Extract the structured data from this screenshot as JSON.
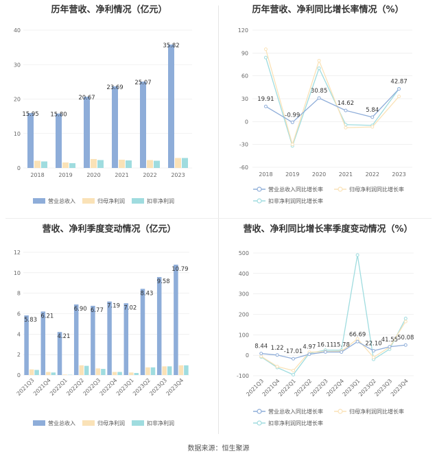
{
  "colors": {
    "revenue": "#8eadd9",
    "net_profit": "#fae2b7",
    "deducted_profit": "#9fdcdf"
  },
  "footer": "数据来源：恒生聚源",
  "chart_data": [
    {
      "type": "bar",
      "title": "历年营收、净利情况（亿元）",
      "categories": [
        "2018",
        "2019",
        "2020",
        "2021",
        "2022",
        "2023"
      ],
      "series": [
        {
          "name": "营业总收入",
          "values": [
            15.95,
            15.8,
            20.67,
            23.69,
            25.07,
            35.82
          ]
        },
        {
          "name": "归母净利润",
          "values": [
            2.1,
            1.6,
            2.6,
            2.4,
            2.3,
            2.9
          ]
        },
        {
          "name": "扣非净利润",
          "values": [
            1.9,
            1.4,
            2.3,
            2.2,
            2.1,
            2.9
          ]
        }
      ],
      "data_labels": [
        "15.95",
        "15.80",
        "20.67",
        "23.69",
        "25.07",
        "35.82"
      ],
      "yticks": [
        0,
        10,
        20,
        30,
        40
      ],
      "ylim": [
        0,
        40
      ]
    },
    {
      "type": "line",
      "title": "历年营收、净利同比增长率情况（%）",
      "categories": [
        "2018",
        "2019",
        "2020",
        "2021",
        "2022",
        "2023"
      ],
      "series": [
        {
          "name": "营业总收入同比增长率",
          "values": [
            19.91,
            -0.99,
            30.85,
            14.62,
            5.84,
            42.87
          ]
        },
        {
          "name": "归母净利润同比增长率",
          "values": [
            95,
            -30,
            80,
            -8,
            -7,
            33
          ]
        },
        {
          "name": "扣非净利润同比增长率",
          "values": [
            84,
            -32,
            70,
            -4,
            -5,
            43
          ]
        }
      ],
      "data_labels": [
        "19.91",
        "-0.99",
        "30.85",
        "14.62",
        "5.84",
        "42.87"
      ],
      "yticks": [
        -60,
        -30,
        0,
        30,
        60,
        90,
        120
      ],
      "ylim": [
        -60,
        120
      ]
    },
    {
      "type": "bar",
      "title": "营收、净利季度变动情况（亿元）",
      "categories": [
        "2021Q3",
        "2021Q4",
        "2022Q1",
        "2022Q2",
        "2022Q3",
        "2022Q4",
        "2023Q1",
        "2023Q2",
        "2023Q3",
        "2023Q4"
      ],
      "series": [
        {
          "name": "营业总收入",
          "values": [
            5.83,
            6.21,
            4.21,
            6.9,
            6.77,
            7.19,
            7.02,
            8.43,
            9.58,
            10.79
          ]
        },
        {
          "name": "归母净利润",
          "values": [
            0.55,
            0.3,
            0.05,
            0.95,
            0.65,
            0.3,
            0.25,
            0.75,
            0.85,
            0.95
          ]
        },
        {
          "name": "扣非净利润",
          "values": [
            0.5,
            0.25,
            0.03,
            0.9,
            0.6,
            0.3,
            0.2,
            0.75,
            0.85,
            0.95
          ]
        }
      ],
      "data_labels": [
        "5.83",
        "6.21",
        "4.21",
        "6.90",
        "6.77",
        "7.19",
        "7.02",
        "8.43",
        "9.58",
        "10.79"
      ],
      "yticks": [
        0,
        2,
        4,
        6,
        8,
        10,
        12
      ],
      "ylim": [
        0,
        12
      ]
    },
    {
      "type": "line",
      "title": "营收、净利同比增长率季度变动情况（%）",
      "categories": [
        "2021Q3",
        "2021Q4",
        "2022Q1",
        "2022Q2",
        "2022Q3",
        "2022Q4",
        "2023Q1",
        "2023Q2",
        "2023Q3",
        "2023Q4"
      ],
      "series": [
        {
          "name": "营业总收入同比增长率",
          "values": [
            8.44,
            1.22,
            -17.01,
            4.97,
            16.11,
            15.78,
            66.69,
            22.1,
            41.55,
            50.08
          ]
        },
        {
          "name": "归母净利润同比增长率",
          "values": [
            -5,
            -55,
            -75,
            15,
            18,
            20,
            80,
            -10,
            40,
            165
          ]
        },
        {
          "name": "扣非净利润同比增长率",
          "values": [
            -8,
            -60,
            -95,
            10,
            25,
            25,
            490,
            -20,
            30,
            180
          ]
        }
      ],
      "data_labels": [
        "8.44",
        "1.22",
        "-17.01",
        "4.97",
        "16.11",
        "15.78",
        "66.69",
        "22.10",
        "41.55",
        "50.08"
      ],
      "yticks": [
        -100,
        0,
        100,
        200,
        300,
        400,
        500
      ],
      "ylim": [
        -100,
        500
      ]
    }
  ]
}
